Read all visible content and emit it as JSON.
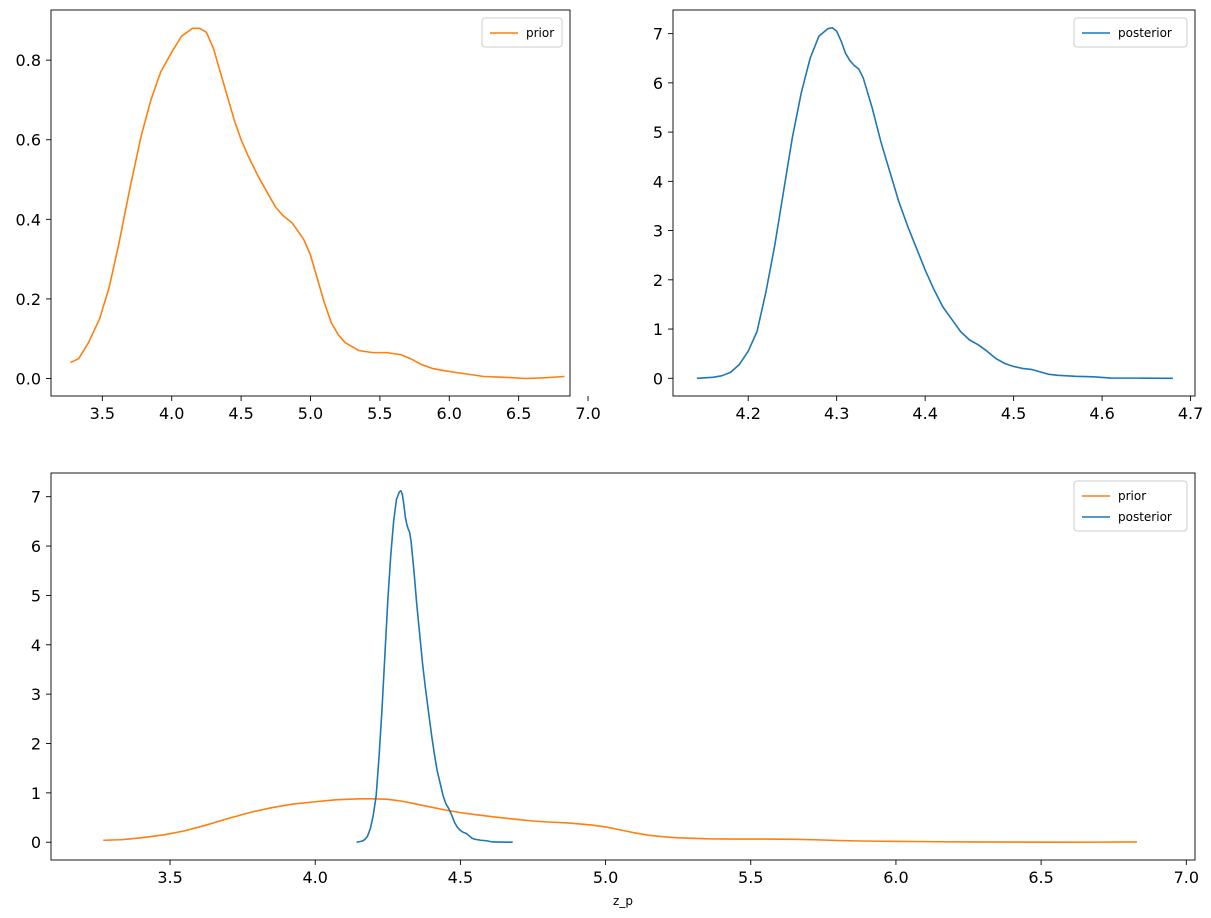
{
  "colors": {
    "prior": "#ff7f0e",
    "posterior": "#1f77b4"
  },
  "chart_data": [
    {
      "type": "line",
      "title": "",
      "xlabel": "",
      "ylabel": "",
      "xlim": [
        3.13,
        6.87
      ],
      "ylim": [
        -0.044,
        0.926
      ],
      "xticks": [
        3.5,
        4.0,
        4.5,
        5.0,
        5.5,
        6.0,
        6.5,
        7.0
      ],
      "xtick_labels": [
        "3.5",
        "4.0",
        "4.5",
        "5.0",
        "5.5",
        "6.0",
        "6.5",
        "7.0"
      ],
      "yticks": [
        0.0,
        0.2,
        0.4,
        0.6,
        0.8
      ],
      "ytick_labels": [
        "0.0",
        "0.2",
        "0.4",
        "0.6",
        "0.8"
      ],
      "legend": "top-right",
      "grid": false,
      "series": [
        {
          "name": "prior",
          "color": "#ff7f0e",
          "x": [
            3.27,
            3.33,
            3.4,
            3.48,
            3.55,
            3.62,
            3.7,
            3.78,
            3.85,
            3.92,
            4.0,
            4.07,
            4.15,
            4.2,
            4.25,
            4.3,
            4.35,
            4.4,
            4.45,
            4.5,
            4.55,
            4.62,
            4.7,
            4.75,
            4.8,
            4.87,
            4.95,
            5.0,
            5.05,
            5.1,
            5.15,
            5.2,
            5.25,
            5.35,
            5.45,
            5.55,
            5.65,
            5.72,
            5.8,
            5.88,
            5.96,
            6.05,
            6.15,
            6.25,
            6.4,
            6.55,
            6.7,
            6.83
          ],
          "y": [
            0.04,
            0.05,
            0.09,
            0.15,
            0.23,
            0.34,
            0.48,
            0.61,
            0.7,
            0.77,
            0.82,
            0.86,
            0.88,
            0.88,
            0.87,
            0.83,
            0.77,
            0.71,
            0.65,
            0.6,
            0.56,
            0.51,
            0.46,
            0.43,
            0.41,
            0.39,
            0.35,
            0.31,
            0.25,
            0.19,
            0.14,
            0.11,
            0.09,
            0.07,
            0.065,
            0.065,
            0.06,
            0.05,
            0.035,
            0.025,
            0.02,
            0.015,
            0.01,
            0.005,
            0.003,
            0.0,
            0.002,
            0.005
          ]
        }
      ]
    },
    {
      "type": "line",
      "title": "",
      "xlabel": "",
      "ylabel": "",
      "xlim": [
        4.115,
        4.705
      ],
      "ylim": [
        -0.36,
        7.48
      ],
      "xticks": [
        4.2,
        4.3,
        4.4,
        4.5,
        4.6,
        4.7
      ],
      "xtick_labels": [
        "4.2",
        "4.3",
        "4.4",
        "4.5",
        "4.6",
        "4.7"
      ],
      "yticks": [
        0,
        1,
        2,
        3,
        4,
        5,
        6,
        7
      ],
      "ytick_labels": [
        "0",
        "1",
        "2",
        "3",
        "4",
        "5",
        "6",
        "7"
      ],
      "legend": "top-right",
      "grid": false,
      "series": [
        {
          "name": "posterior",
          "color": "#1f77b4",
          "x": [
            4.142,
            4.16,
            4.17,
            4.18,
            4.19,
            4.2,
            4.21,
            4.22,
            4.23,
            4.24,
            4.25,
            4.26,
            4.27,
            4.28,
            4.29,
            4.295,
            4.3,
            4.305,
            4.31,
            4.315,
            4.32,
            4.325,
            4.33,
            4.34,
            4.35,
            4.36,
            4.37,
            4.38,
            4.39,
            4.4,
            4.41,
            4.42,
            4.43,
            4.44,
            4.45,
            4.46,
            4.47,
            4.48,
            4.49,
            4.5,
            4.51,
            4.52,
            4.53,
            4.54,
            4.55,
            4.57,
            4.59,
            4.61,
            4.64,
            4.68
          ],
          "y": [
            0.0,
            0.02,
            0.05,
            0.12,
            0.28,
            0.55,
            0.95,
            1.75,
            2.7,
            3.8,
            4.9,
            5.8,
            6.5,
            6.95,
            7.1,
            7.12,
            7.05,
            6.85,
            6.6,
            6.45,
            6.35,
            6.28,
            6.1,
            5.5,
            4.8,
            4.2,
            3.6,
            3.1,
            2.65,
            2.2,
            1.8,
            1.45,
            1.2,
            0.95,
            0.78,
            0.68,
            0.55,
            0.4,
            0.3,
            0.24,
            0.2,
            0.18,
            0.13,
            0.08,
            0.06,
            0.04,
            0.03,
            0.005,
            0.003,
            0.0
          ]
        }
      ]
    },
    {
      "type": "line",
      "title": "",
      "xlabel": "z_p",
      "ylabel": "",
      "xlim": [
        3.09,
        7.03
      ],
      "ylim": [
        -0.36,
        7.48
      ],
      "xticks": [
        3.5,
        4.0,
        4.5,
        5.0,
        5.5,
        6.0,
        6.5,
        7.0
      ],
      "xtick_labels": [
        "3.5",
        "4.0",
        "4.5",
        "5.0",
        "5.5",
        "6.0",
        "6.5",
        "7.0"
      ],
      "yticks": [
        0,
        1,
        2,
        3,
        4,
        5,
        6,
        7
      ],
      "ytick_labels": [
        "0",
        "1",
        "2",
        "3",
        "4",
        "5",
        "6",
        "7"
      ],
      "legend": "top-right",
      "grid": false,
      "series": [
        {
          "name": "prior",
          "color": "#ff7f0e",
          "x": [
            3.27,
            3.33,
            3.4,
            3.48,
            3.55,
            3.62,
            3.7,
            3.78,
            3.85,
            3.92,
            4.0,
            4.07,
            4.15,
            4.2,
            4.25,
            4.3,
            4.35,
            4.4,
            4.45,
            4.5,
            4.55,
            4.62,
            4.7,
            4.75,
            4.8,
            4.87,
            4.95,
            5.0,
            5.05,
            5.1,
            5.15,
            5.2,
            5.25,
            5.35,
            5.45,
            5.55,
            5.65,
            5.72,
            5.8,
            5.88,
            5.96,
            6.05,
            6.15,
            6.25,
            6.4,
            6.55,
            6.7,
            6.83
          ],
          "y": [
            0.04,
            0.05,
            0.09,
            0.15,
            0.23,
            0.34,
            0.48,
            0.61,
            0.7,
            0.77,
            0.82,
            0.86,
            0.88,
            0.88,
            0.87,
            0.83,
            0.77,
            0.71,
            0.65,
            0.6,
            0.56,
            0.51,
            0.46,
            0.43,
            0.41,
            0.39,
            0.35,
            0.31,
            0.25,
            0.19,
            0.14,
            0.11,
            0.09,
            0.07,
            0.065,
            0.065,
            0.06,
            0.05,
            0.035,
            0.025,
            0.02,
            0.015,
            0.01,
            0.005,
            0.003,
            0.0,
            0.002,
            0.005
          ]
        },
        {
          "name": "posterior",
          "color": "#1f77b4",
          "x": [
            4.142,
            4.16,
            4.17,
            4.18,
            4.19,
            4.2,
            4.21,
            4.22,
            4.23,
            4.24,
            4.25,
            4.26,
            4.27,
            4.28,
            4.29,
            4.295,
            4.3,
            4.305,
            4.31,
            4.315,
            4.32,
            4.325,
            4.33,
            4.34,
            4.35,
            4.36,
            4.37,
            4.38,
            4.39,
            4.4,
            4.41,
            4.42,
            4.43,
            4.44,
            4.45,
            4.46,
            4.47,
            4.48,
            4.49,
            4.5,
            4.51,
            4.52,
            4.53,
            4.54,
            4.55,
            4.57,
            4.59,
            4.61,
            4.64,
            4.68
          ],
          "y": [
            0.0,
            0.02,
            0.05,
            0.12,
            0.28,
            0.55,
            0.95,
            1.75,
            2.7,
            3.8,
            4.9,
            5.8,
            6.5,
            6.95,
            7.1,
            7.12,
            7.05,
            6.85,
            6.6,
            6.45,
            6.35,
            6.28,
            6.1,
            5.5,
            4.8,
            4.2,
            3.6,
            3.1,
            2.65,
            2.2,
            1.8,
            1.45,
            1.2,
            0.95,
            0.78,
            0.68,
            0.55,
            0.4,
            0.3,
            0.24,
            0.2,
            0.18,
            0.13,
            0.08,
            0.06,
            0.04,
            0.03,
            0.005,
            0.003,
            0.0
          ]
        }
      ]
    }
  ]
}
